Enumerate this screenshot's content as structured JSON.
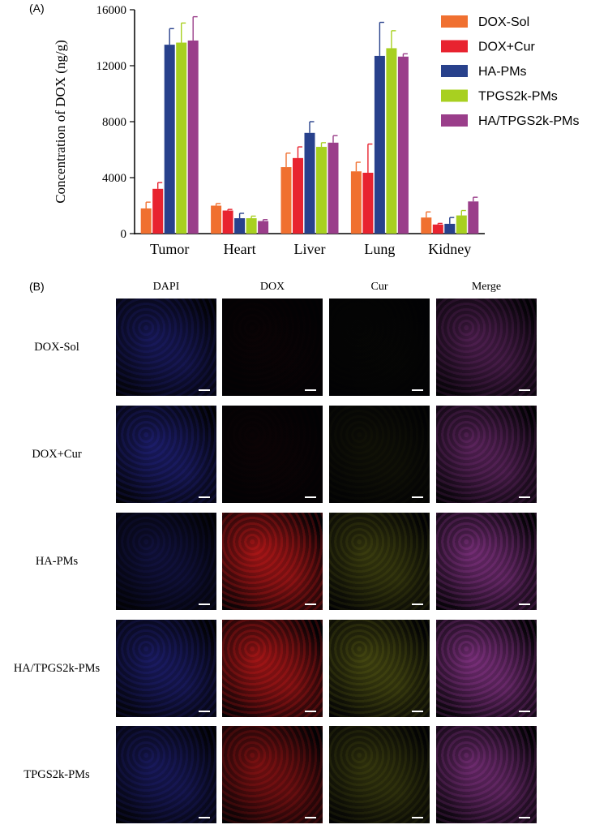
{
  "panel_a_label": "(A)",
  "panel_b_label": "(B)",
  "chart_data": {
    "type": "bar",
    "ylabel": "Concentration of DOX (ng/g)",
    "xlabel": "",
    "ylim": [
      0,
      16000
    ],
    "yticks": [
      0,
      4000,
      8000,
      12000,
      16000
    ],
    "categories": [
      "Tumor",
      "Heart",
      "Liver",
      "Lung",
      "Kidney"
    ],
    "legend_position": "top-right",
    "grid": false,
    "series": [
      {
        "name": "DOX-Sol",
        "color": "#f07030",
        "values": [
          1800,
          2000,
          4750,
          4450,
          1150
        ],
        "errors": [
          450,
          150,
          1000,
          650,
          400
        ]
      },
      {
        "name": "DOX+Cur",
        "color": "#e8232f",
        "values": [
          3200,
          1650,
          5400,
          4350,
          650
        ],
        "errors": [
          450,
          80,
          800,
          2050,
          80
        ]
      },
      {
        "name": "HA-PMs",
        "color": "#28418c",
        "values": [
          13500,
          1100,
          7200,
          12700,
          700
        ],
        "errors": [
          1150,
          350,
          800,
          2400,
          450
        ]
      },
      {
        "name": "TPGS2k-PMs",
        "color": "#a8d020",
        "values": [
          13650,
          1100,
          6200,
          13250,
          1300
        ],
        "errors": [
          1400,
          150,
          300,
          1250,
          350
        ]
      },
      {
        "name": "HA/TPGS2k-PMs",
        "color": "#9a3e8a",
        "values": [
          13800,
          900,
          6500,
          12650,
          2300
        ],
        "errors": [
          1700,
          100,
          500,
          200,
          300
        ]
      }
    ]
  },
  "microscopy": {
    "columns": [
      "DAPI",
      "DOX",
      "Cur",
      "Merge"
    ],
    "rows": [
      {
        "label": "DOX-Sol",
        "channels": [
          0.55,
          0.04,
          0.03,
          0.5
        ]
      },
      {
        "label": "DOX+Cur",
        "channels": [
          0.65,
          0.05,
          0.12,
          0.6
        ]
      },
      {
        "label": "HA-PMs",
        "channels": [
          0.35,
          1.0,
          0.5,
          0.8
        ]
      },
      {
        "label": "HA/TPGS2k-PMs",
        "channels": [
          0.6,
          0.95,
          0.6,
          0.85
        ]
      },
      {
        "label": "TPGS2k-PMs",
        "channels": [
          0.55,
          0.7,
          0.45,
          0.75
        ]
      }
    ],
    "channel_colors": {
      "DAPI": "#3a3ce0",
      "DOX": "#ff2020",
      "Cur": "#9aa020",
      "Merge": "#d050d0"
    }
  }
}
